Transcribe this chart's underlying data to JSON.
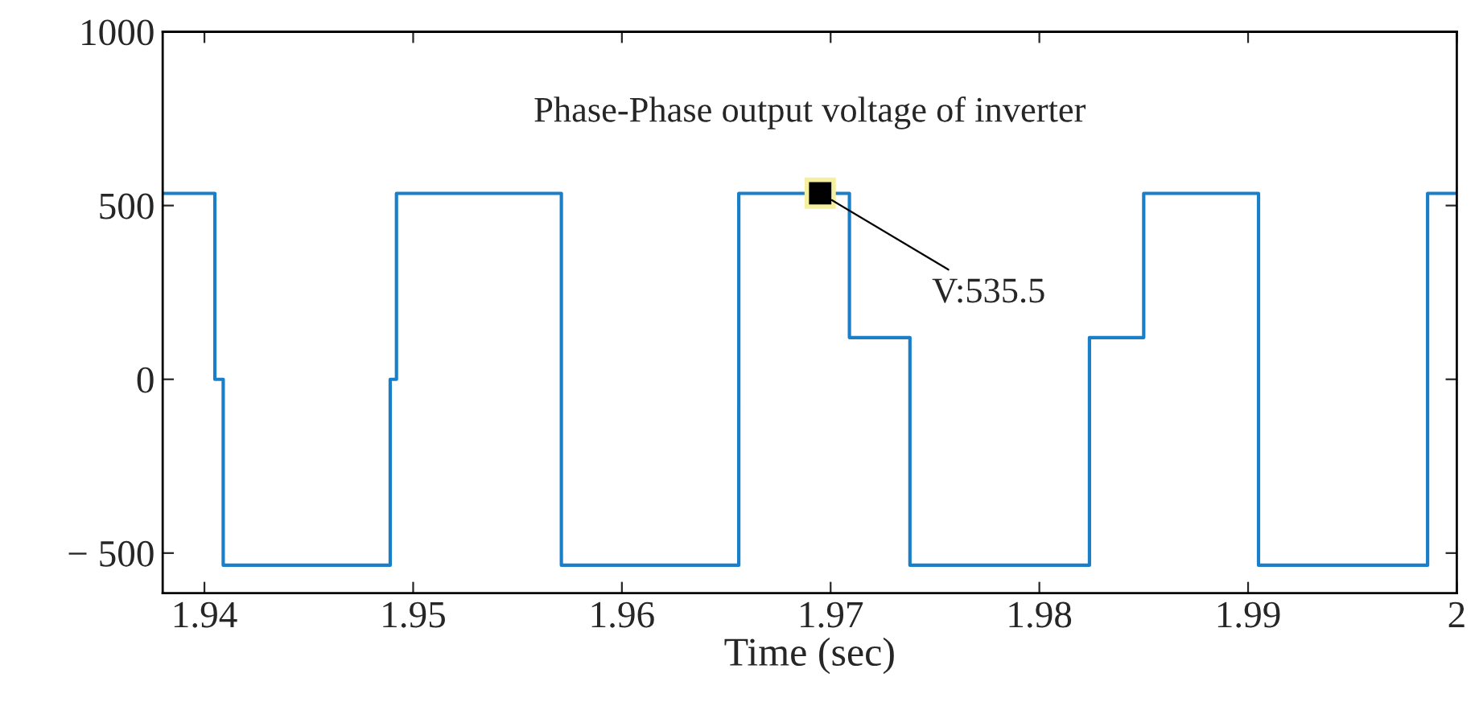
{
  "chart_data": {
    "type": "step",
    "title": "Phase-Phase output voltage of inverter",
    "xlabel": "Time (sec)",
    "x": [
      1.938,
      1.9405,
      1.9409,
      1.9489,
      1.9492,
      1.9571,
      1.9656,
      1.9709,
      1.9738,
      1.9824,
      1.985,
      1.9905,
      1.9986,
      2.0
    ],
    "series": [
      {
        "color": "#1a7fc9",
        "values": [
          535,
          0,
          -535,
          0,
          535,
          -535,
          535,
          120,
          -535,
          120,
          535,
          -535,
          535,
          535
        ]
      }
    ],
    "xlim": [
      1.938,
      2.0
    ],
    "xticks": [
      1.94,
      1.95,
      1.96,
      1.97,
      1.98,
      1.99,
      {
        "value": 2.0,
        "label": "2"
      }
    ],
    "ylim": [
      -615,
      1000
    ],
    "yticks": [
      {
        "value": -500,
        "label": "− 500"
      },
      0,
      500,
      1000
    ],
    "annotations": [
      {
        "text": "V:535.5",
        "x": 1.9695,
        "y": 535.5
      }
    ],
    "grid": false,
    "legend": false
  }
}
